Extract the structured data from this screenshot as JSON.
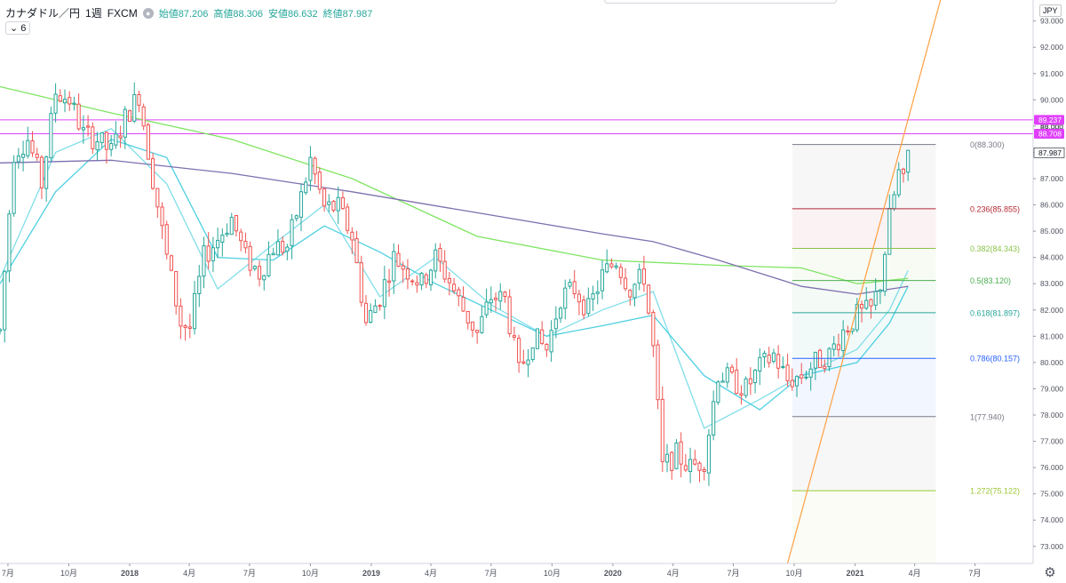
{
  "legend": {
    "symbol": "カナダドル／円",
    "interval": "1週",
    "source": "FXCM",
    "open": "始値87.206",
    "high": "高値88.306",
    "low": "安値86.632",
    "close": "終値87.987"
  },
  "indicator_count": "6",
  "currency": "JPY",
  "colors": {
    "up": "#26a69a",
    "down": "#ef5350",
    "ma_short": "#80deea",
    "ma_cyan": "#4dd0e1",
    "ma_green": "#7ee562",
    "ma_purple": "#7e6fb0",
    "trendline": "#ff9f40",
    "hline": "#e040fb"
  },
  "chart_data": {
    "type": "candlestick",
    "title": "カナダドル／円 1週 FXCM",
    "y_axis": {
      "range": [
        72.35,
        93.8
      ],
      "ticks": [
        "93.000",
        "92.000",
        "91.000",
        "90.000",
        "89.000",
        "88.000",
        "87.000",
        "86.000",
        "85.000",
        "84.000",
        "83.000",
        "82.000",
        "81.000",
        "80.000",
        "79.000",
        "78.000",
        "77.000",
        "76.000",
        "75.000",
        "74.000",
        "73.000"
      ],
      "current_price_label": "87.987"
    },
    "x_axis": {
      "range": [
        "2017-06-19",
        "2021-09-27"
      ],
      "ticks": [
        {
          "label": "7月",
          "date": "2017-07-01"
        },
        {
          "label": "10月",
          "date": "2017-10-01"
        },
        {
          "label": "2018",
          "date": "2018-01-01"
        },
        {
          "label": "4月",
          "date": "2018-04-01"
        },
        {
          "label": "7月",
          "date": "2018-07-01"
        },
        {
          "label": "10月",
          "date": "2018-10-01"
        },
        {
          "label": "2019",
          "date": "2019-01-01"
        },
        {
          "label": "4月",
          "date": "2019-04-01"
        },
        {
          "label": "7月",
          "date": "2019-07-01"
        },
        {
          "label": "10月",
          "date": "2019-10-01"
        },
        {
          "label": "2020",
          "date": "2020-01-01"
        },
        {
          "label": "4月",
          "date": "2020-04-01"
        },
        {
          "label": "7月",
          "date": "2020-07-01"
        },
        {
          "label": "10月",
          "date": "2020-10-01"
        },
        {
          "label": "2021",
          "date": "2021-01-01"
        },
        {
          "label": "4月",
          "date": "2021-04-01"
        },
        {
          "label": "7月",
          "date": "2021-07-01"
        }
      ]
    },
    "price_path": [
      [
        "2017-06-19",
        81.2
      ],
      [
        "2017-07-10",
        88.0
      ],
      [
        "2017-07-31",
        88.5
      ],
      [
        "2017-08-21",
        86.8
      ],
      [
        "2017-09-11",
        90.3
      ],
      [
        "2017-10-02",
        90.0
      ],
      [
        "2017-10-23",
        88.7
      ],
      [
        "2017-11-13",
        88.5
      ],
      [
        "2017-12-04",
        88.0
      ],
      [
        "2017-12-25",
        89.3
      ],
      [
        "2018-01-15",
        90.2
      ],
      [
        "2018-02-05",
        87.0
      ],
      [
        "2018-02-26",
        84.0
      ],
      [
        "2018-03-19",
        81.5
      ],
      [
        "2018-04-02",
        81.3
      ],
      [
        "2018-04-23",
        84.0
      ],
      [
        "2018-05-14",
        84.7
      ],
      [
        "2018-06-04",
        85.5
      ],
      [
        "2018-06-25",
        84.0
      ],
      [
        "2018-07-16",
        83.4
      ],
      [
        "2018-08-06",
        84.4
      ],
      [
        "2018-08-27",
        84.4
      ],
      [
        "2018-09-17",
        86.3
      ],
      [
        "2018-10-01",
        87.7
      ],
      [
        "2018-10-22",
        85.9
      ],
      [
        "2018-11-12",
        85.9
      ],
      [
        "2018-12-03",
        84.8
      ],
      [
        "2018-12-24",
        81.5
      ],
      [
        "2019-01-14",
        82.5
      ],
      [
        "2019-02-04",
        84.0
      ],
      [
        "2019-02-25",
        83.5
      ],
      [
        "2019-03-18",
        83.0
      ],
      [
        "2019-04-08",
        84.0
      ],
      [
        "2019-04-29",
        83.1
      ],
      [
        "2019-05-20",
        82.0
      ],
      [
        "2019-06-10",
        81.1
      ],
      [
        "2019-07-01",
        82.5
      ],
      [
        "2019-07-22",
        82.4
      ],
      [
        "2019-08-12",
        79.6
      ],
      [
        "2019-09-02",
        81.0
      ],
      [
        "2019-09-23",
        80.5
      ],
      [
        "2019-10-14",
        82.5
      ],
      [
        "2019-11-04",
        82.8
      ],
      [
        "2019-11-25",
        82.0
      ],
      [
        "2019-12-16",
        83.3
      ],
      [
        "2020-01-06",
        83.9
      ],
      [
        "2020-01-27",
        82.8
      ],
      [
        "2020-02-17",
        83.3
      ],
      [
        "2020-03-02",
        80.5
      ],
      [
        "2020-03-16",
        76.0
      ],
      [
        "2020-04-06",
        76.5
      ],
      [
        "2020-04-27",
        76.0
      ],
      [
        "2020-05-18",
        76.3
      ],
      [
        "2020-06-08",
        79.6
      ],
      [
        "2020-06-29",
        79.3
      ],
      [
        "2020-07-20",
        79.0
      ],
      [
        "2020-08-10",
        79.8
      ],
      [
        "2020-08-31",
        80.3
      ],
      [
        "2020-09-21",
        79.3
      ],
      [
        "2020-10-12",
        79.5
      ],
      [
        "2020-11-02",
        80.0
      ],
      [
        "2020-11-23",
        80.3
      ],
      [
        "2020-12-14",
        81.2
      ],
      [
        "2021-01-04",
        81.8
      ],
      [
        "2021-01-25",
        82.0
      ],
      [
        "2021-02-08",
        83.0
      ],
      [
        "2021-02-22",
        85.5
      ],
      [
        "2021-03-08",
        87.2
      ],
      [
        "2021-03-15",
        86.8
      ],
      [
        "2021-03-22",
        87.987
      ]
    ],
    "moving_averages": [
      {
        "color": "#80deea",
        "points": [
          [
            "2017-06-19",
            83.2
          ],
          [
            "2017-09-11",
            88.0
          ],
          [
            "2017-12-04",
            88.9
          ],
          [
            "2018-02-26",
            86.8
          ],
          [
            "2018-05-14",
            82.8
          ],
          [
            "2018-08-06",
            84.5
          ],
          [
            "2018-10-22",
            86.0
          ],
          [
            "2019-01-14",
            82.5
          ],
          [
            "2019-04-08",
            84.0
          ],
          [
            "2019-07-01",
            82.2
          ],
          [
            "2019-09-23",
            81.0
          ],
          [
            "2019-12-16",
            82.0
          ],
          [
            "2020-03-02",
            82.7
          ],
          [
            "2020-05-18",
            77.5
          ],
          [
            "2020-08-10",
            78.6
          ],
          [
            "2020-10-12",
            79.5
          ],
          [
            "2021-01-04",
            80.5
          ],
          [
            "2021-02-22",
            82.0
          ],
          [
            "2021-03-22",
            83.5
          ]
        ]
      },
      {
        "color": "#4dd0e1",
        "points": [
          [
            "2017-06-19",
            83.0
          ],
          [
            "2017-09-11",
            86.5
          ],
          [
            "2017-12-04",
            88.5
          ],
          [
            "2018-02-26",
            87.8
          ],
          [
            "2018-05-14",
            84.0
          ],
          [
            "2018-08-06",
            83.9
          ],
          [
            "2018-10-22",
            85.2
          ],
          [
            "2019-01-14",
            84.2
          ],
          [
            "2019-04-08",
            83.0
          ],
          [
            "2019-07-01",
            82.0
          ],
          [
            "2019-09-23",
            81.0
          ],
          [
            "2019-12-16",
            81.4
          ],
          [
            "2020-03-02",
            81.8
          ],
          [
            "2020-05-18",
            79.5
          ],
          [
            "2020-08-10",
            78.2
          ],
          [
            "2020-10-12",
            79.5
          ],
          [
            "2021-01-04",
            80.0
          ],
          [
            "2021-02-22",
            81.5
          ],
          [
            "2021-03-22",
            82.9
          ]
        ]
      },
      {
        "color": "#7ee562",
        "points": [
          [
            "2017-06-19",
            90.5
          ],
          [
            "2017-12-04",
            89.5
          ],
          [
            "2018-06-04",
            88.5
          ],
          [
            "2018-12-03",
            87.0
          ],
          [
            "2019-06-10",
            84.8
          ],
          [
            "2019-12-16",
            83.9
          ],
          [
            "2020-06-08",
            83.7
          ],
          [
            "2020-10-12",
            83.6
          ],
          [
            "2021-01-04",
            83.0
          ],
          [
            "2021-03-22",
            83.2
          ]
        ]
      },
      {
        "color": "#7e6fb0",
        "points": [
          [
            "2017-06-19",
            87.6
          ],
          [
            "2017-12-04",
            87.7
          ],
          [
            "2018-06-04",
            87.2
          ],
          [
            "2018-12-03",
            86.5
          ],
          [
            "2019-06-10",
            85.7
          ],
          [
            "2019-12-16",
            84.9
          ],
          [
            "2020-03-02",
            84.6
          ],
          [
            "2020-06-08",
            83.9
          ],
          [
            "2020-10-12",
            82.9
          ],
          [
            "2021-01-04",
            82.6
          ],
          [
            "2021-03-22",
            82.9
          ]
        ]
      }
    ],
    "horizontal_lines": [
      {
        "value": 89.237,
        "label": "89.237"
      },
      {
        "value": 88.708,
        "label": "88.708"
      }
    ],
    "axis_overlap_label": "89.000",
    "trendline": {
      "from": [
        "2020-09-21",
        72.35
      ],
      "to": [
        "2021-05-10",
        93.8
      ]
    },
    "fibonacci": {
      "start_date": "2020-09-28",
      "end_date": "2021-05-03",
      "levels": [
        {
          "label": "0(88.300)",
          "value": 88.3,
          "color": "#787b86"
        },
        {
          "label": "0.236(85.855)",
          "value": 85.855,
          "color": "#b22833"
        },
        {
          "label": "0.382(84.343)",
          "value": 84.343,
          "color": "#8bc34a"
        },
        {
          "label": "0.5(83.120)",
          "value": 83.12,
          "color": "#4caf50"
        },
        {
          "label": "0.618(81.897)",
          "value": 81.897,
          "color": "#26a69a"
        },
        {
          "label": "0.786(80.157)",
          "value": 80.157,
          "color": "#2962ff"
        },
        {
          "label": "1(77.940)",
          "value": 77.94,
          "color": "#787b86"
        },
        {
          "label": "1.272(75.122)",
          "value": 75.122,
          "color": "#9bc832"
        }
      ]
    }
  }
}
